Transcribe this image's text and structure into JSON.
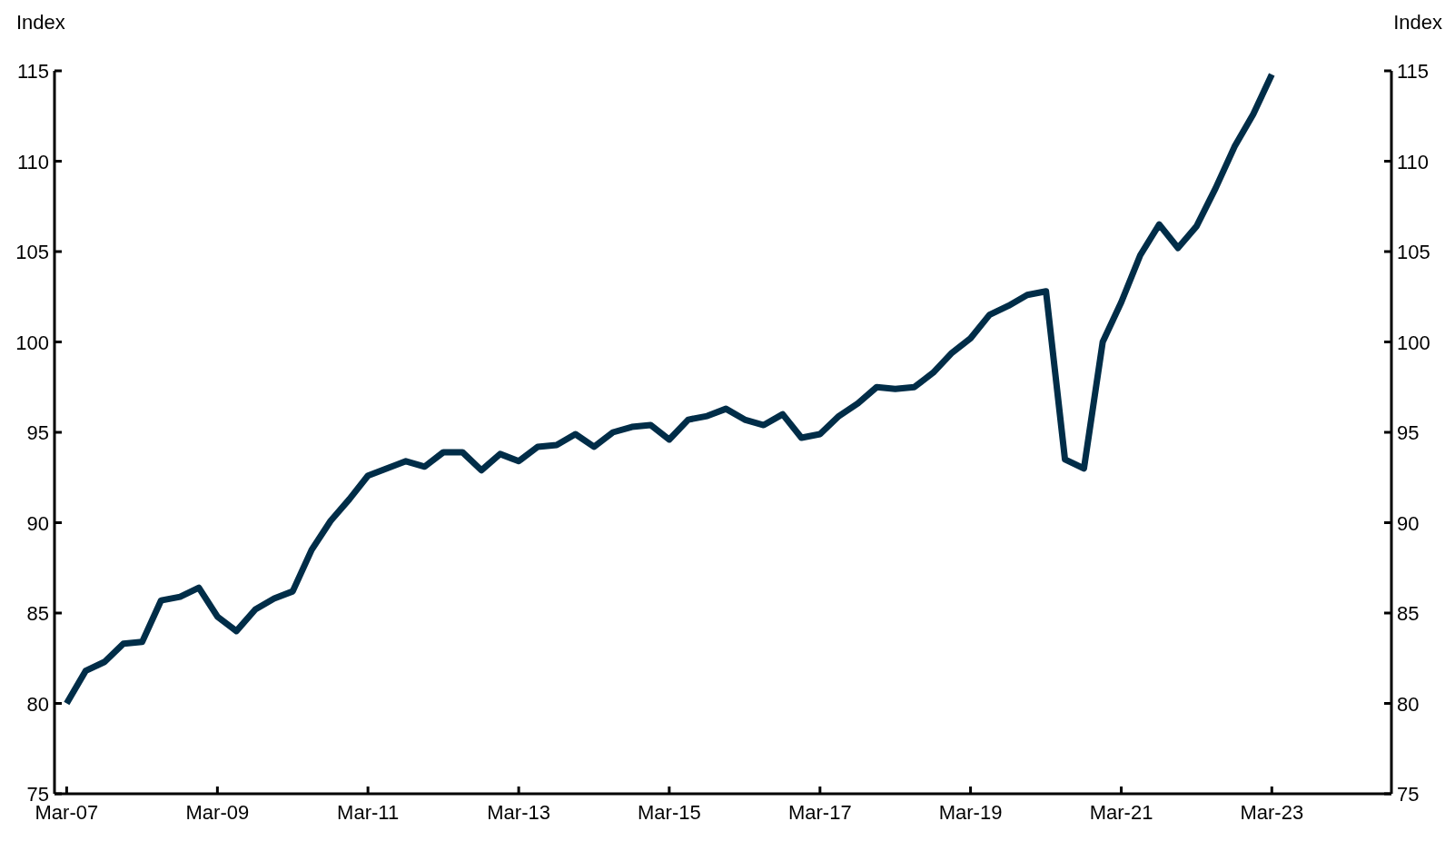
{
  "chart_data": {
    "type": "line",
    "ylabel": "Index",
    "y2label": "Index",
    "x": [
      "2007-03",
      "2007-06",
      "2007-09",
      "2007-12",
      "2008-03",
      "2008-06",
      "2008-09",
      "2008-12",
      "2009-03",
      "2009-06",
      "2009-09",
      "2009-12",
      "2010-03",
      "2010-06",
      "2010-09",
      "2010-12",
      "2011-03",
      "2011-06",
      "2011-09",
      "2011-12",
      "2012-03",
      "2012-06",
      "2012-09",
      "2012-12",
      "2013-03",
      "2013-06",
      "2013-09",
      "2013-12",
      "2014-03",
      "2014-06",
      "2014-09",
      "2014-12",
      "2015-03",
      "2015-06",
      "2015-09",
      "2015-12",
      "2016-03",
      "2016-06",
      "2016-09",
      "2016-12",
      "2017-03",
      "2017-06",
      "2017-09",
      "2017-12",
      "2018-03",
      "2018-06",
      "2018-09",
      "2018-12",
      "2019-03",
      "2019-06",
      "2019-09",
      "2019-12",
      "2020-03",
      "2020-06",
      "2020-09",
      "2020-12",
      "2021-03",
      "2021-06",
      "2021-09",
      "2021-12",
      "2022-03",
      "2022-06",
      "2022-09",
      "2022-12",
      "2023-03"
    ],
    "series": [
      {
        "color": "#002d48",
        "values": [
          80.0,
          81.8,
          82.3,
          83.3,
          83.4,
          85.7,
          85.9,
          86.4,
          84.8,
          84.0,
          85.2,
          85.8,
          86.2,
          88.5,
          90.1,
          91.3,
          92.6,
          93.0,
          93.4,
          93.1,
          93.9,
          93.9,
          92.9,
          93.8,
          93.4,
          94.2,
          94.3,
          94.9,
          94.2,
          95.0,
          95.3,
          95.4,
          94.6,
          95.7,
          95.9,
          96.3,
          95.7,
          95.4,
          96.0,
          94.7,
          94.9,
          95.9,
          96.6,
          97.5,
          97.4,
          97.5,
          98.3,
          99.4,
          100.2,
          101.5,
          102.0,
          102.6,
          102.8,
          93.5,
          93.0,
          100.0,
          102.2,
          104.8,
          106.5,
          105.2,
          106.4,
          108.5,
          110.8,
          112.6,
          114.8
        ]
      }
    ],
    "xlim": [
      "2007-01",
      "2024-10"
    ],
    "xticks": [
      {
        "value": "2007-03",
        "label": "Mar-07"
      },
      {
        "value": "2009-03",
        "label": "Mar-09"
      },
      {
        "value": "2011-03",
        "label": "Mar-11"
      },
      {
        "value": "2013-03",
        "label": "Mar-13"
      },
      {
        "value": "2015-03",
        "label": "Mar-15"
      },
      {
        "value": "2017-03",
        "label": "Mar-17"
      },
      {
        "value": "2019-03",
        "label": "Mar-19"
      },
      {
        "value": "2021-03",
        "label": "Mar-21"
      },
      {
        "value": "2023-03",
        "label": "Mar-23"
      }
    ],
    "ylim": [
      75,
      115
    ],
    "yticks": [
      75,
      80,
      85,
      90,
      95,
      100,
      105,
      110,
      115
    ],
    "y2lim": [
      75,
      115
    ],
    "y2ticks": [
      75,
      80,
      85,
      90,
      95,
      100,
      105,
      110,
      115
    ],
    "grid": false,
    "line_style": "solid",
    "marker": "none"
  }
}
